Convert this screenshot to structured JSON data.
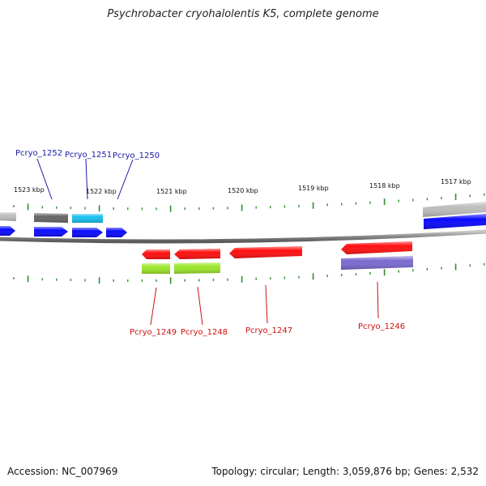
{
  "title": "Psychrobacter cryohalolentis K5, complete genome",
  "footer": {
    "accession": "Accession: NC_007969",
    "summary": "Topology: circular; Length: 3,059,876 bp; Genes: 2,532"
  },
  "colors": {
    "backbone": "#8a8a8a",
    "tick": "#2f8f2f",
    "forward_label": "#1a1aa8",
    "reverse_label": "#cc1111",
    "cds_blue": "#0a0aff",
    "cds_red": "#ff1010",
    "gene_gray": "#666666",
    "gene_lightgray": "#bdbdbd",
    "gene_cyan": "#18c0ef",
    "gene_green": "#9be62a",
    "gene_purple": "#7a6ad0"
  },
  "scale": {
    "labels": [
      "1523 kbp",
      "1522 kbp",
      "1521 kbp",
      "1520 kbp",
      "1519 kbp",
      "1518 kbp",
      "1517 kbp"
    ]
  },
  "genes": {
    "forward": [
      "Pcryo_1252",
      "Pcryo_1251",
      "Pcryo_1250"
    ],
    "reverse": [
      "Pcryo_1249",
      "Pcryo_1248",
      "Pcryo_1247",
      "Pcryo_1246"
    ]
  }
}
